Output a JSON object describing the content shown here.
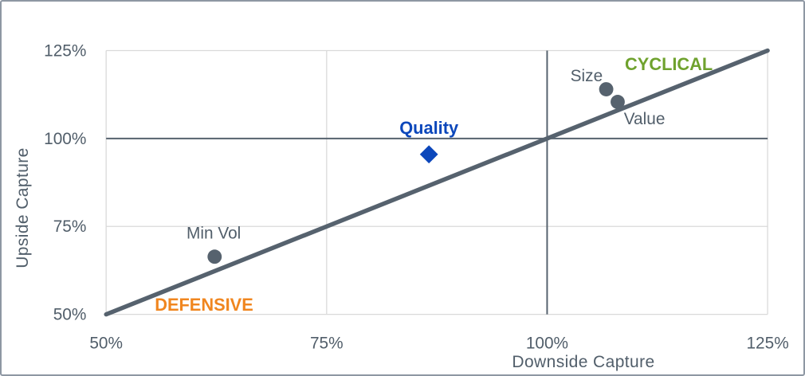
{
  "colors": {
    "slate": "#56626E",
    "tick_text": "#515E6A",
    "grid": "#D9D9D9",
    "frame_border": "#8E97A3",
    "quality_blue": "#0C47BB",
    "defensive_orange": "#F0861F",
    "cyclical_green": "#6FA22E",
    "background": "#FFFFFF"
  },
  "chart_data": {
    "type": "scatter",
    "title": "",
    "xlabel": "Downside Capture",
    "ylabel": "Upside Capture",
    "xlim": [
      50,
      125
    ],
    "ylim": [
      50,
      125
    ],
    "grid": true,
    "legend": "none",
    "xticks": [
      {
        "value": 50,
        "label": "50%"
      },
      {
        "value": 75,
        "label": "75%"
      },
      {
        "value": 100,
        "label": "100%"
      },
      {
        "value": 125,
        "label": "125%"
      }
    ],
    "yticks": [
      {
        "value": 50,
        "label": "50%"
      },
      {
        "value": 75,
        "label": "75%"
      },
      {
        "value": 100,
        "label": "100%"
      },
      {
        "value": 125,
        "label": "125%"
      }
    ],
    "reference_lines": {
      "x": 100,
      "y": 100
    },
    "identity_line": {
      "from": [
        50,
        50
      ],
      "to": [
        125,
        125
      ]
    },
    "points": [
      {
        "name": "Min Vol",
        "x": 62.3,
        "y": 66.4,
        "marker": "circle",
        "color": "#56626E"
      },
      {
        "name": "Quality",
        "x": 86.6,
        "y": 95.5,
        "marker": "diamond",
        "color": "#0C47BB"
      },
      {
        "name": "Size",
        "x": 106.7,
        "y": 114.0,
        "marker": "circle",
        "color": "#56626E"
      },
      {
        "name": "Value",
        "x": 108.0,
        "y": 110.4,
        "marker": "circle",
        "color": "#56626E"
      }
    ],
    "point_labels": [
      {
        "text": "Min Vol",
        "x": 62.2,
        "y": 73.1,
        "anchor": "middle",
        "bold": false,
        "size": 21,
        "color": "#515E6A"
      },
      {
        "text": "Quality",
        "x": 86.6,
        "y": 103.1,
        "anchor": "middle",
        "bold": true,
        "size": 22,
        "color": "#0C47BB"
      },
      {
        "text": "Size",
        "x": 106.3,
        "y": 117.9,
        "anchor": "end",
        "bold": false,
        "size": 21,
        "color": "#515E6A"
      },
      {
        "text": "Value",
        "x": 108.7,
        "y": 105.6,
        "anchor": "start",
        "bold": false,
        "size": 21,
        "color": "#515E6A"
      }
    ],
    "quadrant_labels": [
      {
        "text": "CYCLICAL",
        "x": 113.8,
        "y": 121.2,
        "anchor": "middle",
        "bold": true,
        "size": 22,
        "color": "#6FA22E"
      },
      {
        "text": "DEFENSIVE",
        "x": 61.1,
        "y": 52.9,
        "anchor": "middle",
        "bold": true,
        "size": 22,
        "color": "#F0861F"
      }
    ]
  }
}
